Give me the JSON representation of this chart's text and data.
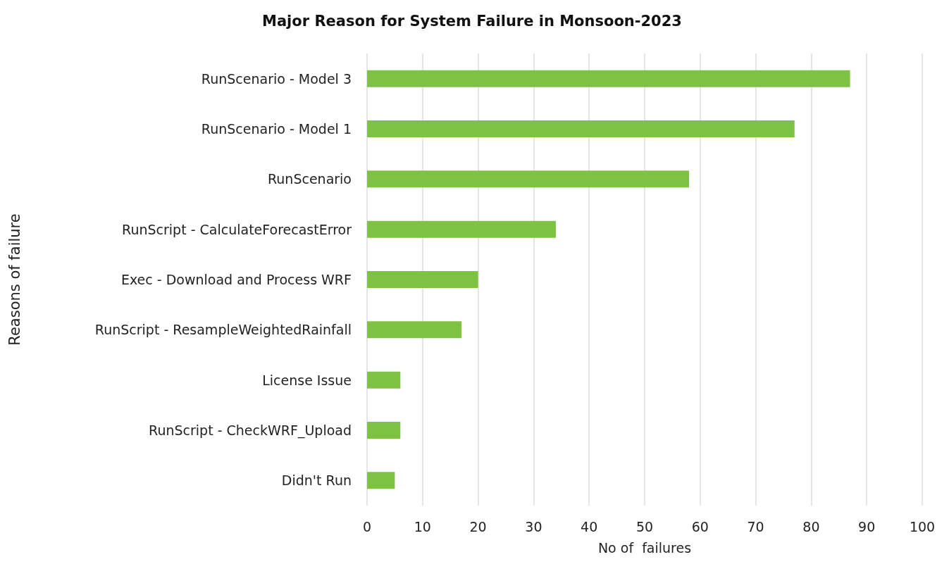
{
  "chart_data": {
    "type": "bar",
    "orientation": "horizontal",
    "title": "Major Reason for System Failure in Monsoon-2023",
    "xlabel": "No of  failures",
    "ylabel": "Reasons of failure",
    "categories": [
      "RunScenario - Model 3",
      "RunScenario - Model 1",
      "RunScenario",
      "RunScript - CalculateForecastError",
      "Exec - Download and Process WRF",
      "RunScript - ResampleWeightedRainfall",
      "License Issue",
      "RunScript - CheckWRF_Upload",
      "Didn't Run"
    ],
    "values": [
      87,
      77,
      58,
      34,
      20,
      17,
      6,
      6,
      5
    ],
    "color": "#7dc242",
    "xlim": [
      0,
      100
    ],
    "xticks": [
      0,
      10,
      20,
      30,
      40,
      50,
      60,
      70,
      80,
      90,
      100
    ],
    "grid": "x"
  }
}
